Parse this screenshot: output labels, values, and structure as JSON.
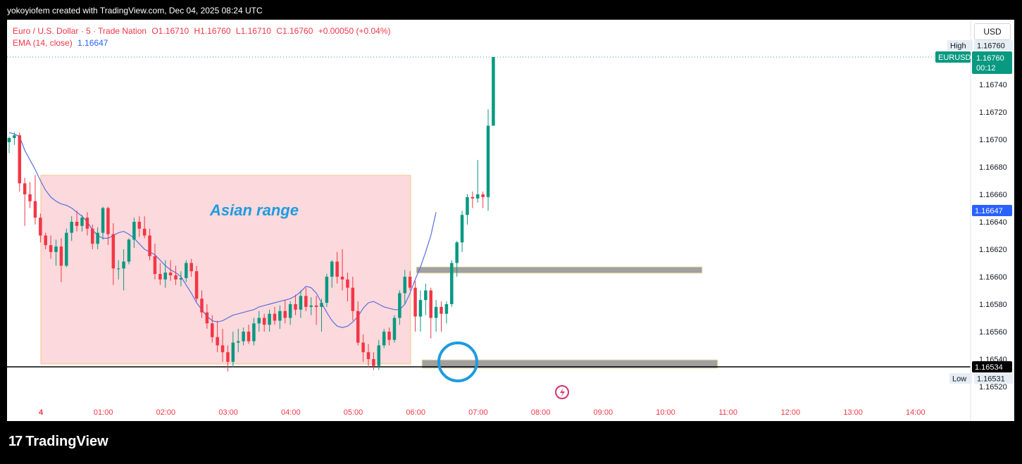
{
  "header": {
    "credit": "yokoyiofem created with TradingView.com, Dec 04, 2025 08:24 UTC"
  },
  "legend": {
    "symbol": "Euro / U.S. Dollar · 5 · Trade Nation",
    "o_label": "O",
    "o": "1.16710",
    "h_label": "H",
    "h": "1.16760",
    "l_label": "L",
    "l": "1.16710",
    "c_label": "C",
    "c": "1.16760",
    "change": "+0.00050 (+0.04%)",
    "ema_label": "EMA (14, close)",
    "ema_value": "1.16647"
  },
  "currency_button": "USD",
  "brand": {
    "mark": "17",
    "name": "TradingView"
  },
  "chart_data": {
    "type": "candlestick",
    "annotation": "Asian range",
    "x_ticks": [
      "4",
      "01:00",
      "02:00",
      "03:00",
      "04:00",
      "05:00",
      "06:00",
      "07:00",
      "08:00",
      "09:00",
      "10:00",
      "11:00",
      "12:00",
      "13:00",
      "14:00"
    ],
    "y_ticks": [
      "1.16740",
      "1.16720",
      "1.16700",
      "1.16680",
      "1.16660",
      "1.16640",
      "1.16620",
      "1.16600",
      "1.16580",
      "1.16560",
      "1.16540",
      "1.16520"
    ],
    "ylim": [
      1.16515,
      1.16775
    ],
    "price_labels": {
      "high_label": "High",
      "high": "1.16760",
      "symbol": "EURUSD",
      "last": "1.16760",
      "countdown": "00:12",
      "ema": "1.16647",
      "line": "1.16534",
      "low_label": "Low",
      "low": "1.16531"
    },
    "ema_series": [
      1.16705,
      1.16704,
      1.16702,
      1.16692,
      1.16685,
      1.16678,
      1.1667,
      1.16663,
      1.16658,
      1.16655,
      1.16653,
      1.16652,
      1.1665,
      1.16647,
      1.16644,
      1.1664,
      1.16634,
      1.1663,
      1.16628,
      1.16628,
      1.1663,
      1.16632,
      1.16633,
      1.16631,
      1.16628,
      1.16624,
      1.1662,
      1.16618,
      1.16616,
      1.16612,
      1.16608,
      1.16605,
      1.16603,
      1.166,
      1.16594,
      1.16588,
      1.16581,
      1.16576,
      1.16571,
      1.16568,
      1.16567,
      1.16568,
      1.1657,
      1.16572,
      1.16573,
      1.16574,
      1.16575,
      1.16576,
      1.16578,
      1.16579,
      1.1658,
      1.16581,
      1.16582,
      1.16583,
      1.16584,
      1.16586,
      1.16589,
      1.16593,
      1.16592,
      1.16588,
      1.16581,
      1.16574,
      1.16568,
      1.16564,
      1.16563,
      1.16564,
      1.16567,
      1.16571,
      1.16577,
      1.16581,
      1.16582,
      1.1658,
      1.16578,
      1.16577,
      1.16576,
      1.16576,
      1.1658,
      1.16588,
      1.16598,
      1.16607,
      1.16618,
      1.1663,
      1.16647
    ],
    "candles": [
      {
        "o": 1.16698,
        "h": 1.16702,
        "l": 1.1669,
        "c": 1.16701
      },
      {
        "o": 1.16701,
        "h": 1.16705,
        "l": 1.16696,
        "c": 1.16703
      },
      {
        "o": 1.16703,
        "h": 1.16705,
        "l": 1.16662,
        "c": 1.16668
      },
      {
        "o": 1.16668,
        "h": 1.16672,
        "l": 1.16637,
        "c": 1.1666
      },
      {
        "o": 1.1666,
        "h": 1.16669,
        "l": 1.1665,
        "c": 1.16655
      },
      {
        "o": 1.16655,
        "h": 1.16674,
        "l": 1.16638,
        "c": 1.16643
      },
      {
        "o": 1.16643,
        "h": 1.16646,
        "l": 1.16625,
        "c": 1.1663
      },
      {
        "o": 1.1663,
        "h": 1.16632,
        "l": 1.1662,
        "c": 1.16623
      },
      {
        "o": 1.16623,
        "h": 1.1663,
        "l": 1.16613,
        "c": 1.16618
      },
      {
        "o": 1.16618,
        "h": 1.16627,
        "l": 1.16608,
        "c": 1.16622
      },
      {
        "o": 1.16622,
        "h": 1.16628,
        "l": 1.16596,
        "c": 1.16608
      },
      {
        "o": 1.16608,
        "h": 1.16635,
        "l": 1.16607,
        "c": 1.16632
      },
      {
        "o": 1.16632,
        "h": 1.16644,
        "l": 1.16626,
        "c": 1.1664
      },
      {
        "o": 1.1664,
        "h": 1.16648,
        "l": 1.16633,
        "c": 1.16637
      },
      {
        "o": 1.16637,
        "h": 1.16645,
        "l": 1.16633,
        "c": 1.16643
      },
      {
        "o": 1.16643,
        "h": 1.16647,
        "l": 1.1663,
        "c": 1.16635
      },
      {
        "o": 1.16635,
        "h": 1.16638,
        "l": 1.1662,
        "c": 1.16624
      },
      {
        "o": 1.16624,
        "h": 1.16636,
        "l": 1.1662,
        "c": 1.16632
      },
      {
        "o": 1.16632,
        "h": 1.16651,
        "l": 1.16627,
        "c": 1.1665
      },
      {
        "o": 1.1665,
        "h": 1.16651,
        "l": 1.16623,
        "c": 1.16631
      },
      {
        "o": 1.16631,
        "h": 1.16639,
        "l": 1.16594,
        "c": 1.16606
      },
      {
        "o": 1.16606,
        "h": 1.16612,
        "l": 1.16598,
        "c": 1.16606
      },
      {
        "o": 1.16606,
        "h": 1.1662,
        "l": 1.1659,
        "c": 1.16611
      },
      {
        "o": 1.16611,
        "h": 1.16628,
        "l": 1.16609,
        "c": 1.16627
      },
      {
        "o": 1.16627,
        "h": 1.16643,
        "l": 1.16621,
        "c": 1.1664
      },
      {
        "o": 1.1664,
        "h": 1.16644,
        "l": 1.16629,
        "c": 1.16635
      },
      {
        "o": 1.16635,
        "h": 1.16644,
        "l": 1.16628,
        "c": 1.1663
      },
      {
        "o": 1.1663,
        "h": 1.16635,
        "l": 1.16612,
        "c": 1.16615
      },
      {
        "o": 1.16615,
        "h": 1.16624,
        "l": 1.16598,
        "c": 1.16602
      },
      {
        "o": 1.16602,
        "h": 1.1661,
        "l": 1.16594,
        "c": 1.16598
      },
      {
        "o": 1.16598,
        "h": 1.16612,
        "l": 1.16592,
        "c": 1.16603
      },
      {
        "o": 1.16603,
        "h": 1.16612,
        "l": 1.16597,
        "c": 1.16601
      },
      {
        "o": 1.16601,
        "h": 1.16608,
        "l": 1.16594,
        "c": 1.16598
      },
      {
        "o": 1.16598,
        "h": 1.16604,
        "l": 1.16593,
        "c": 1.16599
      },
      {
        "o": 1.16599,
        "h": 1.16612,
        "l": 1.16596,
        "c": 1.1661
      },
      {
        "o": 1.1661,
        "h": 1.16613,
        "l": 1.166,
        "c": 1.16604
      },
      {
        "o": 1.16604,
        "h": 1.16608,
        "l": 1.16582,
        "c": 1.16584
      },
      {
        "o": 1.16584,
        "h": 1.1659,
        "l": 1.1657,
        "c": 1.16574
      },
      {
        "o": 1.16574,
        "h": 1.1658,
        "l": 1.16562,
        "c": 1.16566
      },
      {
        "o": 1.16566,
        "h": 1.16572,
        "l": 1.16552,
        "c": 1.16556
      },
      {
        "o": 1.16556,
        "h": 1.16568,
        "l": 1.16545,
        "c": 1.1655
      },
      {
        "o": 1.1655,
        "h": 1.16562,
        "l": 1.16538,
        "c": 1.16545
      },
      {
        "o": 1.16545,
        "h": 1.1655,
        "l": 1.16531,
        "c": 1.16538
      },
      {
        "o": 1.16538,
        "h": 1.1656,
        "l": 1.16534,
        "c": 1.16552
      },
      {
        "o": 1.16552,
        "h": 1.16562,
        "l": 1.16545,
        "c": 1.16553
      },
      {
        "o": 1.16553,
        "h": 1.16563,
        "l": 1.1655,
        "c": 1.1656
      },
      {
        "o": 1.1656,
        "h": 1.16565,
        "l": 1.16551,
        "c": 1.16553
      },
      {
        "o": 1.16553,
        "h": 1.1657,
        "l": 1.1655,
        "c": 1.16566
      },
      {
        "o": 1.16566,
        "h": 1.16575,
        "l": 1.1656,
        "c": 1.1657
      },
      {
        "o": 1.1657,
        "h": 1.16573,
        "l": 1.1656,
        "c": 1.16565
      },
      {
        "o": 1.16565,
        "h": 1.16576,
        "l": 1.1656,
        "c": 1.16573
      },
      {
        "o": 1.16573,
        "h": 1.16578,
        "l": 1.16565,
        "c": 1.16568
      },
      {
        "o": 1.16568,
        "h": 1.16579,
        "l": 1.16562,
        "c": 1.16575
      },
      {
        "o": 1.16575,
        "h": 1.16583,
        "l": 1.16566,
        "c": 1.1657
      },
      {
        "o": 1.1657,
        "h": 1.16582,
        "l": 1.16565,
        "c": 1.1658
      },
      {
        "o": 1.1658,
        "h": 1.16587,
        "l": 1.16572,
        "c": 1.16576
      },
      {
        "o": 1.16576,
        "h": 1.1659,
        "l": 1.1657,
        "c": 1.16586
      },
      {
        "o": 1.16586,
        "h": 1.16592,
        "l": 1.16575,
        "c": 1.16578
      },
      {
        "o": 1.16578,
        "h": 1.16585,
        "l": 1.16572,
        "c": 1.16579
      },
      {
        "o": 1.16579,
        "h": 1.16586,
        "l": 1.16565,
        "c": 1.16578
      },
      {
        "o": 1.16578,
        "h": 1.16584,
        "l": 1.1656,
        "c": 1.16581
      },
      {
        "o": 1.16581,
        "h": 1.16602,
        "l": 1.16578,
        "c": 1.166
      },
      {
        "o": 1.166,
        "h": 1.16612,
        "l": 1.16592,
        "c": 1.16611
      },
      {
        "o": 1.16611,
        "h": 1.16618,
        "l": 1.16595,
        "c": 1.166
      },
      {
        "o": 1.166,
        "h": 1.1662,
        "l": 1.1659,
        "c": 1.16598
      },
      {
        "o": 1.16598,
        "h": 1.16603,
        "l": 1.16582,
        "c": 1.16592
      },
      {
        "o": 1.16592,
        "h": 1.166,
        "l": 1.16568,
        "c": 1.16575
      },
      {
        "o": 1.16575,
        "h": 1.16582,
        "l": 1.1655,
        "c": 1.16552
      },
      {
        "o": 1.16552,
        "h": 1.16558,
        "l": 1.16538,
        "c": 1.16545
      },
      {
        "o": 1.16545,
        "h": 1.16551,
        "l": 1.16534,
        "c": 1.1654
      },
      {
        "o": 1.1654,
        "h": 1.16545,
        "l": 1.16532,
        "c": 1.16535
      },
      {
        "o": 1.16535,
        "h": 1.16554,
        "l": 1.16532,
        "c": 1.1655
      },
      {
        "o": 1.1655,
        "h": 1.16562,
        "l": 1.16548,
        "c": 1.1656
      },
      {
        "o": 1.1656,
        "h": 1.16563,
        "l": 1.1655,
        "c": 1.16554
      },
      {
        "o": 1.16554,
        "h": 1.16572,
        "l": 1.16552,
        "c": 1.1657
      },
      {
        "o": 1.1657,
        "h": 1.1659,
        "l": 1.16565,
        "c": 1.16588
      },
      {
        "o": 1.16588,
        "h": 1.16605,
        "l": 1.1658,
        "c": 1.166
      },
      {
        "o": 1.166,
        "h": 1.16604,
        "l": 1.1659,
        "c": 1.16592
      },
      {
        "o": 1.16592,
        "h": 1.16597,
        "l": 1.1656,
        "c": 1.16571
      },
      {
        "o": 1.16571,
        "h": 1.1659,
        "l": 1.1656,
        "c": 1.16583
      },
      {
        "o": 1.16583,
        "h": 1.16595,
        "l": 1.16572,
        "c": 1.1659
      },
      {
        "o": 1.1659,
        "h": 1.16592,
        "l": 1.16555,
        "c": 1.1657
      },
      {
        "o": 1.1657,
        "h": 1.16583,
        "l": 1.1656,
        "c": 1.16578
      },
      {
        "o": 1.16578,
        "h": 1.16582,
        "l": 1.1656,
        "c": 1.16573
      },
      {
        "o": 1.16573,
        "h": 1.16582,
        "l": 1.16566,
        "c": 1.1658
      },
      {
        "o": 1.1658,
        "h": 1.16612,
        "l": 1.16578,
        "c": 1.1661
      },
      {
        "o": 1.1661,
        "h": 1.16626,
        "l": 1.166,
        "c": 1.16625
      },
      {
        "o": 1.16625,
        "h": 1.16648,
        "l": 1.16618,
        "c": 1.16645
      },
      {
        "o": 1.16645,
        "h": 1.1666,
        "l": 1.16638,
        "c": 1.16658
      },
      {
        "o": 1.16658,
        "h": 1.16662,
        "l": 1.1665,
        "c": 1.16657
      },
      {
        "o": 1.16657,
        "h": 1.16685,
        "l": 1.16654,
        "c": 1.1666
      },
      {
        "o": 1.1666,
        "h": 1.16662,
        "l": 1.1665,
        "c": 1.16658
      },
      {
        "o": 1.16658,
        "h": 1.16722,
        "l": 1.16648,
        "c": 1.1671
      },
      {
        "o": 1.1671,
        "h": 1.1676,
        "l": 1.1671,
        "c": 1.1676
      }
    ]
  }
}
